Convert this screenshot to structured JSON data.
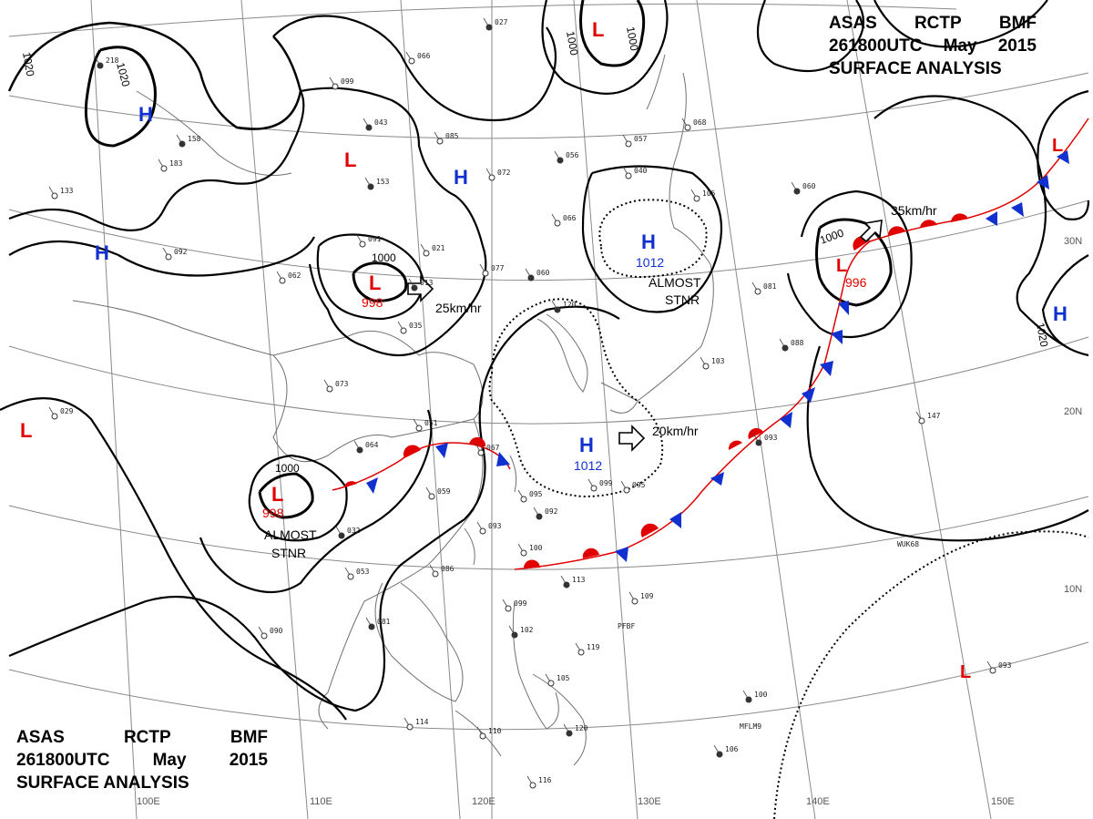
{
  "title": {
    "agency": "ASAS",
    "station": "RCTP",
    "office": "BMF",
    "datetime": "261800UTC",
    "month": "May",
    "year": "2015",
    "subtitle": "SURFACE ANALYSIS"
  },
  "graticule": {
    "longitude_labels": [
      "100E",
      "110E",
      "120E",
      "130E",
      "140E",
      "150E"
    ],
    "latitude_labels": [
      "30N",
      "20N",
      "10N"
    ]
  },
  "isobar_labels": [
    "1020",
    "1020",
    "1000",
    "1000",
    "1000",
    "1000",
    "1000",
    "1020"
  ],
  "pressure_centers": [
    {
      "type": "H",
      "color": "#1030d0"
    },
    {
      "type": "H",
      "color": "#1030d0"
    },
    {
      "type": "H",
      "color": "#1030d0"
    },
    {
      "type": "H",
      "color": "#1030d0",
      "value": "1012"
    },
    {
      "type": "H",
      "color": "#1030d0",
      "value": "1012"
    },
    {
      "type": "H",
      "color": "#1030d0"
    },
    {
      "type": "L",
      "color": "#e00000"
    },
    {
      "type": "L",
      "color": "#e00000"
    },
    {
      "type": "L",
      "color": "#e00000"
    },
    {
      "type": "L",
      "color": "#e00000",
      "value": "998"
    },
    {
      "type": "L",
      "color": "#e00000",
      "value": "998"
    },
    {
      "type": "L",
      "color": "#e00000",
      "value": "996"
    },
    {
      "type": "L",
      "color": "#e00000"
    },
    {
      "type": "L",
      "color": "#e00000"
    }
  ],
  "motion_annotations": [
    "25km/hr",
    "20km/hr",
    "35km/hr"
  ],
  "status_annotations": [
    {
      "line1": "ALMOST",
      "line2": "STNR"
    },
    {
      "line1": "ALMOST",
      "line2": "STNR"
    }
  ],
  "ship_callsigns": [
    "WUK68",
    "PFBF",
    "MFLM9"
  ],
  "station_values": [
    "027",
    "066",
    "099",
    "043",
    "085",
    "072",
    "056",
    "057",
    "068",
    "060",
    "040",
    "105",
    "120",
    "066",
    "077",
    "060",
    "021",
    "091",
    "153",
    "062",
    "035",
    "013",
    "073",
    "051",
    "064",
    "067",
    "059",
    "032",
    "053",
    "086",
    "081",
    "090",
    "095",
    "092",
    "093",
    "100",
    "113",
    "109",
    "099",
    "102",
    "119",
    "105",
    "120",
    "110",
    "114",
    "106",
    "116",
    "147",
    "088",
    "103",
    "081",
    "093",
    "095",
    "099",
    "100",
    "093",
    "029",
    "158",
    "183",
    "133",
    "218",
    "092"
  ],
  "colors": {
    "isobar": "#000000",
    "high": "#1030d0",
    "low": "#e00000",
    "front_line": "#e00000",
    "cold_triangle": "#1030d0",
    "warm_semicircle": "#e00000",
    "coastline": "#707070",
    "graticule": "#8a8a8a"
  }
}
